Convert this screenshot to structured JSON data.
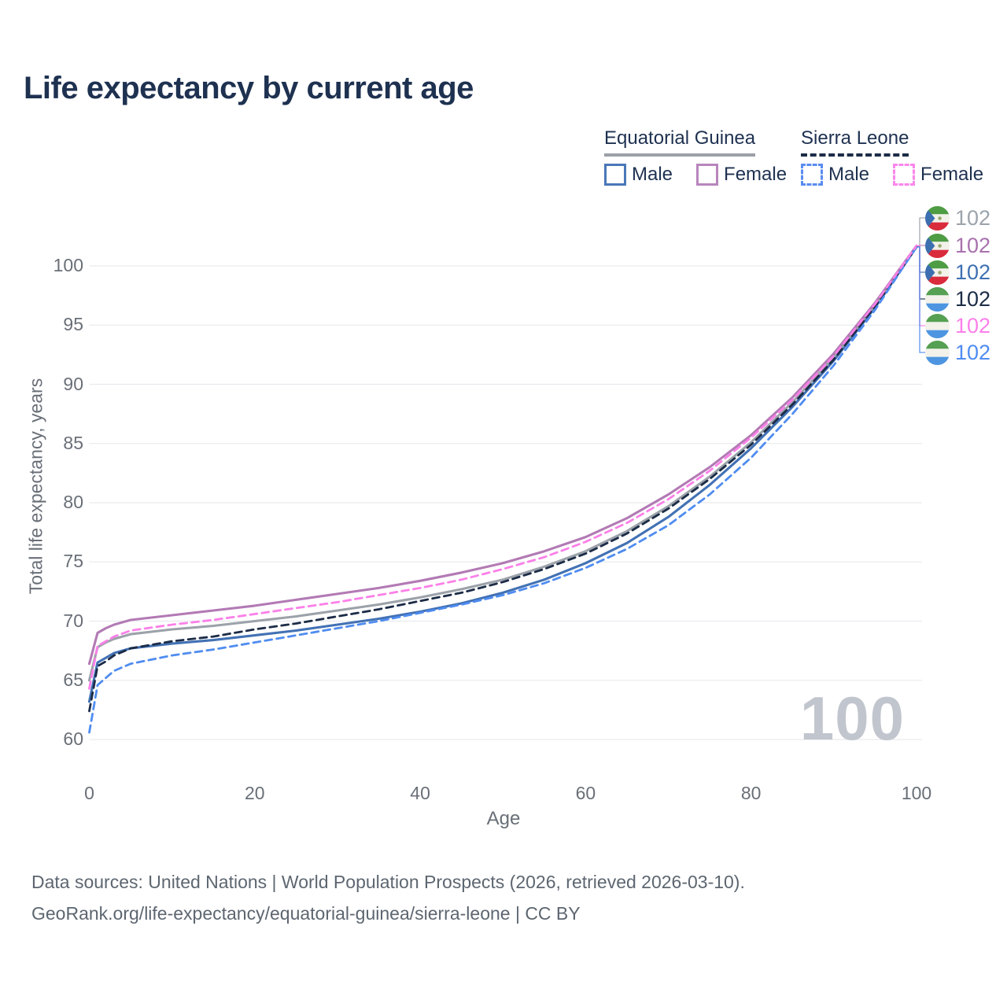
{
  "colors": {
    "title_text": "#1e3150",
    "axis_text": "#696f77",
    "gridline": "#e9ebee",
    "watermark_text": "#c1c5cd",
    "footer_text": "#5d6670",
    "eqg_underline": "#9aa0a6",
    "sl_underline": "#1c2c47"
  },
  "legend": {
    "groups": [
      {
        "country": "Equatorial Guinea",
        "underline_style": "solid",
        "underline_color": "#9aa0a6",
        "items": [
          {
            "label": "Male",
            "swatch_style": "solid",
            "color": "#4a77b8"
          },
          {
            "label": "Female",
            "swatch_style": "solid",
            "color": "#b886bd"
          }
        ]
      },
      {
        "country": "Sierra Leone",
        "underline_style": "dashed",
        "underline_color": "#1c2c47",
        "items": [
          {
            "label": "Male",
            "swatch_style": "dashed",
            "color": "#5a8cf0"
          },
          {
            "label": "Female",
            "swatch_style": "dashed",
            "color": "#fb86ec"
          }
        ]
      }
    ]
  },
  "chart_data": {
    "type": "line",
    "title": "Life expectancy by current age",
    "xlabel": "Age",
    "ylabel": "Total life expectancy, years",
    "x_ticks": [
      0,
      20,
      40,
      60,
      80,
      100
    ],
    "y_ticks": [
      60,
      65,
      70,
      75,
      80,
      85,
      90,
      95,
      100
    ],
    "xlim": [
      0,
      100
    ],
    "ylim": [
      60,
      102.5
    ],
    "grid": "horizontal-only",
    "legend_position": "top-right",
    "watermark": "100",
    "ages": [
      0,
      1,
      2,
      3,
      5,
      10,
      15,
      20,
      25,
      30,
      35,
      40,
      45,
      50,
      55,
      60,
      65,
      70,
      75,
      80,
      85,
      90,
      95,
      100
    ],
    "series": [
      {
        "name": "Equatorial Guinea — Both sexes",
        "country": "Equatorial Guinea",
        "sex": "both",
        "line_style": "solid",
        "color": "#9CA2A9",
        "label_color": "#9CA3AB",
        "end_label": "102",
        "flag": "gq",
        "values": [
          65.0,
          67.8,
          68.2,
          68.5,
          68.9,
          69.3,
          69.6,
          70.0,
          70.4,
          70.9,
          71.4,
          72.0,
          72.7,
          73.5,
          74.6,
          75.9,
          77.6,
          79.7,
          82.2,
          85.1,
          88.5,
          92.3,
          96.7,
          101.6
        ]
      },
      {
        "name": "Equatorial Guinea — Female",
        "country": "Equatorial Guinea",
        "sex": "female",
        "line_style": "solid",
        "color": "#B27AB4",
        "label_color": "#A871AE",
        "end_label": "102",
        "flag": "gq",
        "values": [
          66.4,
          69.0,
          69.4,
          69.7,
          70.1,
          70.5,
          70.9,
          71.3,
          71.8,
          72.3,
          72.8,
          73.4,
          74.1,
          74.9,
          75.9,
          77.1,
          78.7,
          80.7,
          83.0,
          85.7,
          88.9,
          92.6,
          96.9,
          101.7
        ]
      },
      {
        "name": "Equatorial Guinea — Male",
        "country": "Equatorial Guinea",
        "sex": "male",
        "line_style": "solid",
        "color": "#4271B4",
        "label_color": "#3E70B2",
        "end_label": "102",
        "flag": "gq",
        "values": [
          63.2,
          66.5,
          66.9,
          67.3,
          67.7,
          68.1,
          68.4,
          68.8,
          69.2,
          69.7,
          70.2,
          70.8,
          71.5,
          72.4,
          73.5,
          74.9,
          76.6,
          78.8,
          81.5,
          84.6,
          88.1,
          92.0,
          96.5,
          101.6
        ]
      },
      {
        "name": "Sierra Leone — Both sexes",
        "country": "Sierra Leone",
        "sex": "both",
        "line_style": "dashed",
        "color": "#1C2C47",
        "label_color": "#1C2C47",
        "end_label": "102",
        "flag": "sl",
        "values": [
          62.4,
          66.2,
          66.6,
          67.1,
          67.7,
          68.3,
          68.7,
          69.3,
          69.8,
          70.4,
          71.0,
          71.7,
          72.4,
          73.3,
          74.4,
          75.7,
          77.4,
          79.5,
          82.0,
          84.9,
          88.3,
          92.1,
          96.6,
          101.6
        ]
      },
      {
        "name": "Sierra Leone — Female",
        "country": "Sierra Leone",
        "sex": "female",
        "line_style": "dashed",
        "color": "#FB80E8",
        "label_color": "#FC80EA",
        "end_label": "102",
        "flag": "sl",
        "values": [
          64.3,
          67.9,
          68.3,
          68.7,
          69.2,
          69.7,
          70.1,
          70.6,
          71.1,
          71.6,
          72.2,
          72.8,
          73.5,
          74.4,
          75.4,
          76.7,
          78.3,
          80.3,
          82.7,
          85.5,
          88.7,
          92.4,
          96.8,
          101.7
        ]
      },
      {
        "name": "Sierra Leone — Male",
        "country": "Sierra Leone",
        "sex": "male",
        "line_style": "dashed",
        "color": "#4F8CF0",
        "label_color": "#4F8CF0",
        "end_label": "102",
        "flag": "sl",
        "values": [
          60.6,
          64.6,
          65.2,
          65.8,
          66.4,
          67.1,
          67.6,
          68.2,
          68.8,
          69.4,
          70.0,
          70.7,
          71.4,
          72.2,
          73.2,
          74.5,
          76.1,
          78.1,
          80.7,
          83.8,
          87.5,
          91.6,
          96.3,
          101.6
        ]
      }
    ]
  },
  "footer": {
    "line1": "Data sources: United Nations | World Population Prospects (2026, retrieved 2026-03-10).",
    "line2": "GeoRank.org/life-expectancy/equatorial-guinea/sierra-leone | CC BY"
  }
}
